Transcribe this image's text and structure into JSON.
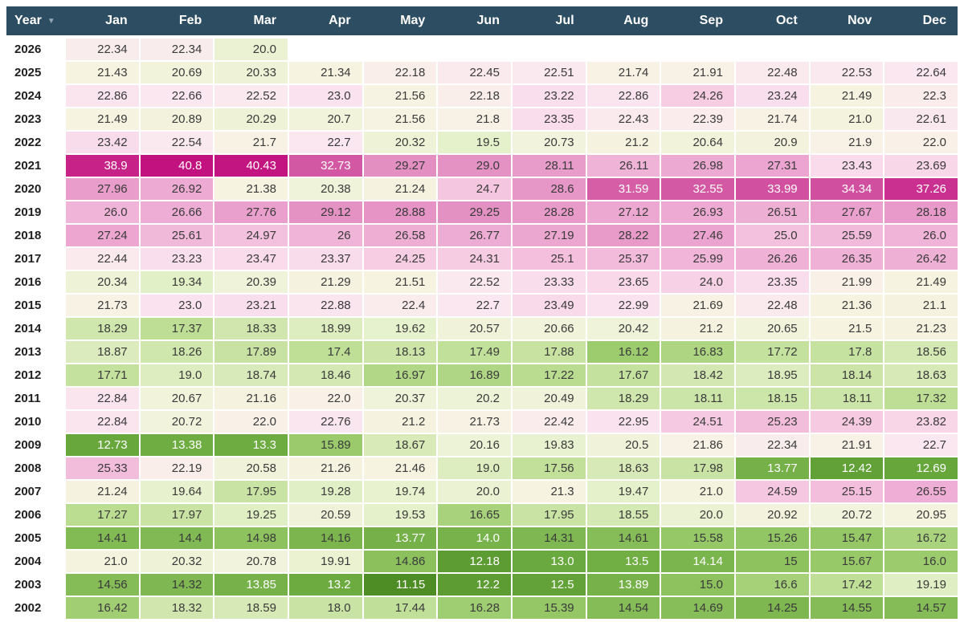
{
  "chart_data": {
    "type": "heatmap",
    "columns": [
      "Year",
      "Jan",
      "Feb",
      "Mar",
      "Apr",
      "May",
      "Jun",
      "Jul",
      "Aug",
      "Sep",
      "Oct",
      "Nov",
      "Dec"
    ],
    "sort": {
      "column": "Year",
      "direction": "desc",
      "arrow_glyph": "▼"
    },
    "rows": [
      {
        "year": "2026",
        "values": [
          "22.34",
          "22.34",
          "20.0",
          "",
          "",
          "",
          "",
          "",
          "",
          "",
          "",
          ""
        ]
      },
      {
        "year": "2025",
        "values": [
          "21.43",
          "20.69",
          "20.33",
          "21.34",
          "22.18",
          "22.45",
          "22.51",
          "21.74",
          "21.91",
          "22.48",
          "22.53",
          "22.64"
        ]
      },
      {
        "year": "2024",
        "values": [
          "22.86",
          "22.66",
          "22.52",
          "23.0",
          "21.56",
          "22.18",
          "23.22",
          "22.86",
          "24.26",
          "23.24",
          "21.49",
          "22.3"
        ]
      },
      {
        "year": "2023",
        "values": [
          "21.49",
          "20.89",
          "20.29",
          "20.7",
          "21.56",
          "21.8",
          "23.35",
          "22.43",
          "22.39",
          "21.74",
          "21.0",
          "22.61"
        ]
      },
      {
        "year": "2022",
        "values": [
          "23.42",
          "22.54",
          "21.7",
          "22.7",
          "20.32",
          "19.5",
          "20.73",
          "21.2",
          "20.64",
          "20.9",
          "21.9",
          "22.0"
        ]
      },
      {
        "year": "2021",
        "values": [
          "38.9",
          "40.8",
          "40.43",
          "32.73",
          "29.27",
          "29.0",
          "28.11",
          "26.11",
          "26.98",
          "27.31",
          "23.43",
          "23.69"
        ]
      },
      {
        "year": "2020",
        "values": [
          "27.96",
          "26.92",
          "21.38",
          "20.38",
          "21.24",
          "24.7",
          "28.6",
          "31.59",
          "32.55",
          "33.99",
          "34.34",
          "37.26"
        ]
      },
      {
        "year": "2019",
        "values": [
          "26.0",
          "26.66",
          "27.76",
          "29.12",
          "28.88",
          "29.25",
          "28.28",
          "27.12",
          "26.93",
          "26.51",
          "27.67",
          "28.18"
        ]
      },
      {
        "year": "2018",
        "values": [
          "27.24",
          "25.61",
          "24.97",
          "26",
          "26.58",
          "26.77",
          "27.19",
          "28.22",
          "27.46",
          "25.0",
          "25.59",
          "26.0"
        ]
      },
      {
        "year": "2017",
        "values": [
          "22.44",
          "23.23",
          "23.47",
          "23.37",
          "24.25",
          "24.31",
          "25.1",
          "25.37",
          "25.99",
          "26.26",
          "26.35",
          "26.42"
        ]
      },
      {
        "year": "2016",
        "values": [
          "20.34",
          "19.34",
          "20.39",
          "21.29",
          "21.51",
          "22.52",
          "23.33",
          "23.65",
          "24.0",
          "23.35",
          "21.99",
          "21.49"
        ]
      },
      {
        "year": "2015",
        "values": [
          "21.73",
          "23.0",
          "23.21",
          "22.88",
          "22.4",
          "22.7",
          "23.49",
          "22.99",
          "21.69",
          "22.48",
          "21.36",
          "21.1"
        ]
      },
      {
        "year": "2014",
        "values": [
          "18.29",
          "17.37",
          "18.33",
          "18.99",
          "19.62",
          "20.57",
          "20.66",
          "20.42",
          "21.2",
          "20.65",
          "21.5",
          "21.23"
        ]
      },
      {
        "year": "2013",
        "values": [
          "18.87",
          "18.26",
          "17.89",
          "17.4",
          "18.13",
          "17.49",
          "17.88",
          "16.12",
          "16.83",
          "17.72",
          "17.8",
          "18.56"
        ]
      },
      {
        "year": "2012",
        "values": [
          "17.71",
          "19.0",
          "18.74",
          "18.46",
          "16.97",
          "16.89",
          "17.22",
          "17.67",
          "18.42",
          "18.95",
          "18.14",
          "18.63"
        ]
      },
      {
        "year": "2011",
        "values": [
          "22.84",
          "20.67",
          "21.16",
          "22.0",
          "20.37",
          "20.2",
          "20.49",
          "18.29",
          "18.11",
          "18.15",
          "18.11",
          "17.32"
        ]
      },
      {
        "year": "2010",
        "values": [
          "22.84",
          "20.72",
          "22.0",
          "22.76",
          "21.2",
          "21.73",
          "22.42",
          "22.95",
          "24.51",
          "25.23",
          "24.39",
          "23.82"
        ]
      },
      {
        "year": "2009",
        "values": [
          "12.73",
          "13.38",
          "13.3",
          "15.89",
          "18.67",
          "20.16",
          "19.83",
          "20.5",
          "21.86",
          "22.34",
          "21.91",
          "22.7"
        ]
      },
      {
        "year": "2008",
        "values": [
          "25.33",
          "22.19",
          "20.58",
          "21.26",
          "21.46",
          "19.0",
          "17.56",
          "18.63",
          "17.98",
          "13.77",
          "12.42",
          "12.69"
        ]
      },
      {
        "year": "2007",
        "values": [
          "21.24",
          "19.64",
          "17.95",
          "19.28",
          "19.74",
          "20.0",
          "21.3",
          "19.47",
          "21.0",
          "24.59",
          "25.15",
          "26.55"
        ]
      },
      {
        "year": "2006",
        "values": [
          "17.27",
          "17.97",
          "19.25",
          "20.59",
          "19.53",
          "16.65",
          "17.95",
          "18.55",
          "20.0",
          "20.92",
          "20.72",
          "20.95"
        ]
      },
      {
        "year": "2005",
        "values": [
          "14.41",
          "14.4",
          "14.98",
          "14.16",
          "13.77",
          "14.0",
          "14.31",
          "14.61",
          "15.58",
          "15.26",
          "15.47",
          "16.72"
        ]
      },
      {
        "year": "2004",
        "values": [
          "21.0",
          "20.32",
          "20.78",
          "19.91",
          "14.86",
          "12.18",
          "13.0",
          "13.5",
          "14.14",
          "15",
          "15.67",
          "16.0"
        ]
      },
      {
        "year": "2003",
        "values": [
          "14.56",
          "14.32",
          "13.85",
          "13.2",
          "11.15",
          "12.2",
          "12.5",
          "13.89",
          "15.0",
          "16.6",
          "17.42",
          "19.19"
        ]
      },
      {
        "year": "2002",
        "values": [
          "16.42",
          "18.32",
          "18.59",
          "18.0",
          "17.44",
          "16.28",
          "15.39",
          "14.54",
          "14.69",
          "14.25",
          "14.55",
          "14.57"
        ]
      }
    ],
    "color_scale": {
      "anchors": [
        [
          11.15,
          "#4e8c26"
        ],
        [
          12.2,
          "#5d9c33"
        ],
        [
          12.73,
          "#67a73c"
        ],
        [
          13.4,
          "#6fad43"
        ],
        [
          14.0,
          "#78b24b"
        ],
        [
          14.6,
          "#86bd58"
        ],
        [
          15.4,
          "#95c766"
        ],
        [
          16.4,
          "#a0ce72"
        ],
        [
          17.4,
          "#bfdf97"
        ],
        [
          18.0,
          "#c9e3a4"
        ],
        [
          18.7,
          "#d8eab9"
        ],
        [
          19.5,
          "#e5f1cb"
        ],
        [
          20.3,
          "#eef3d8"
        ],
        [
          21.0,
          "#f4f3de"
        ],
        [
          21.6,
          "#f7f3e2"
        ],
        [
          22.1,
          "#f9efe9"
        ],
        [
          22.6,
          "#fae8ef"
        ],
        [
          23.4,
          "#f9dcec"
        ],
        [
          24.3,
          "#f6cce2"
        ],
        [
          25.3,
          "#f2bcdb"
        ],
        [
          26.5,
          "#eeafd5"
        ],
        [
          28.0,
          "#e99dcb"
        ],
        [
          29.3,
          "#e38fc2"
        ],
        [
          31.6,
          "#d55ea7"
        ],
        [
          34.3,
          "#d14f9f"
        ],
        [
          37.3,
          "#c93090"
        ],
        [
          40.8,
          "#c2127f"
        ]
      ],
      "white_text_low_max": 14.15,
      "white_text_high_min": 31.0
    },
    "colors": {
      "header_bg": "#2d4d62",
      "header_text": "#ffffff",
      "sort_arrow": "#92a6b5",
      "cell_text": "#3a3a3a",
      "cell_text_inverse": "#ffffff",
      "year_text": "#1f1f1f",
      "empty_cell": "#ffffff"
    }
  }
}
